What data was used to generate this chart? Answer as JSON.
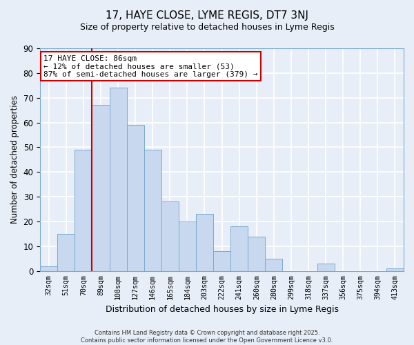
{
  "title": "17, HAYE CLOSE, LYME REGIS, DT7 3NJ",
  "subtitle": "Size of property relative to detached houses in Lyme Regis",
  "xlabel": "Distribution of detached houses by size in Lyme Regis",
  "ylabel": "Number of detached properties",
  "bar_color": "#c8d8ee",
  "bar_edge_color": "#7aaad0",
  "background_color": "#e8eef8",
  "grid_color": "white",
  "categories": [
    "32sqm",
    "51sqm",
    "70sqm",
    "89sqm",
    "108sqm",
    "127sqm",
    "146sqm",
    "165sqm",
    "184sqm",
    "203sqm",
    "222sqm",
    "241sqm",
    "260sqm",
    "280sqm",
    "299sqm",
    "318sqm",
    "337sqm",
    "356sqm",
    "375sqm",
    "394sqm",
    "413sqm"
  ],
  "values": [
    2,
    15,
    49,
    67,
    74,
    59,
    49,
    28,
    20,
    23,
    8,
    18,
    14,
    5,
    0,
    0,
    3,
    0,
    0,
    0,
    1
  ],
  "ylim": [
    0,
    90
  ],
  "yticks": [
    0,
    10,
    20,
    30,
    40,
    50,
    60,
    70,
    80,
    90
  ],
  "vline_x": 2.5,
  "vline_color": "#cc0000",
  "annotation_line1": "17 HAYE CLOSE: 86sqm",
  "annotation_line2": "← 12% of detached houses are smaller (53)",
  "annotation_line3": "87% of semi-detached houses are larger (379) →",
  "annotation_box_color": "white",
  "annotation_box_edge": "#cc0000",
  "footer_line1": "Contains HM Land Registry data © Crown copyright and database right 2025.",
  "footer_line2": "Contains public sector information licensed under the Open Government Licence v3.0."
}
